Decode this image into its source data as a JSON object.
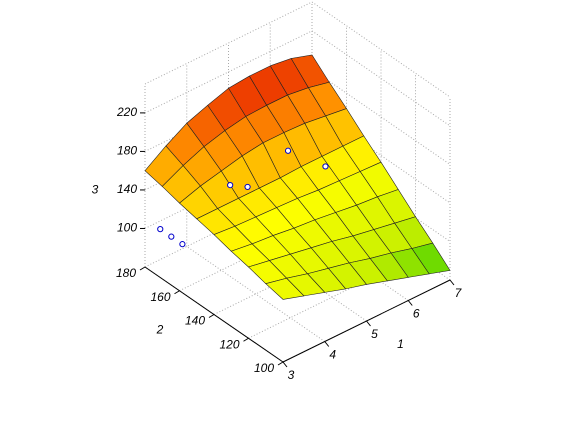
{
  "chart_data": {
    "type": "surface",
    "x_label": "1",
    "y_label": "2",
    "z_label": "3",
    "x": [
      3,
      3.5,
      4,
      4.5,
      5,
      5.5,
      6,
      6.5,
      7
    ],
    "y": [
      100,
      110,
      120,
      130,
      140,
      150,
      160,
      170,
      180
    ],
    "z": [
      [
        125,
        118,
        111,
        104,
        98,
        91,
        84,
        77,
        70
      ],
      [
        129,
        124,
        118,
        113,
        108,
        102,
        97,
        91,
        86
      ],
      [
        134,
        130,
        126,
        122,
        118,
        113,
        109,
        105,
        101
      ],
      [
        138,
        135,
        133,
        130,
        128,
        125,
        122,
        120,
        117
      ],
      [
        143,
        141,
        140,
        139,
        138,
        136,
        135,
        134,
        133
      ],
      [
        147,
        147,
        147,
        147,
        147,
        148,
        148,
        148,
        148
      ],
      [
        151,
        158,
        163,
        168,
        171,
        171,
        170,
        167,
        164
      ],
      [
        156,
        167,
        176,
        182,
        186,
        187,
        187,
        184,
        179
      ],
      [
        160,
        175,
        188,
        196,
        203,
        205,
        205,
        202,
        195
      ]
    ],
    "xlim": [
      3,
      7
    ],
    "ylim": [
      100,
      180
    ],
    "zlim": [
      60,
      250
    ],
    "xticks": [
      3,
      4,
      5,
      6,
      7
    ],
    "yticks": [
      100,
      120,
      140,
      160,
      180
    ],
    "zticks": [
      100,
      140,
      180,
      220
    ],
    "colorscale": [
      "#00c000",
      "#c8f000",
      "#ffff00",
      "#ff9000",
      "#e00000",
      "#7a0000"
    ],
    "grid": true,
    "points": {
      "color": "#0000cc",
      "x": [
        3.3,
        3.4,
        3.2,
        3.8,
        4.3,
        5.6,
        6.0
      ],
      "y": [
        172,
        168,
        176,
        150,
        152,
        160,
        148
      ],
      "z": [
        95,
        90,
        100,
        165,
        150,
        150,
        140
      ]
    }
  }
}
